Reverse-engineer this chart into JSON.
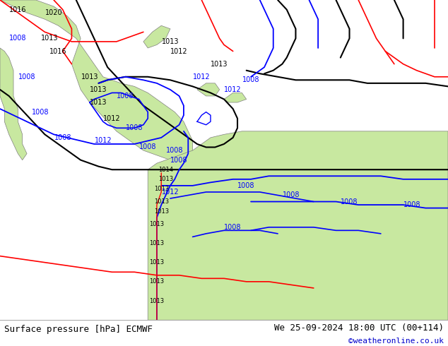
{
  "title_left": "Surface pressure [hPa] ECMWF",
  "title_right": "We 25-09-2024 18:00 UTC (00+114)",
  "copyright": "©weatheronline.co.uk",
  "bg_color": "#d8d8d8",
  "land_color": "#c8e8a0",
  "land_edge_color": "#808080",
  "fig_width": 6.34,
  "fig_height": 4.9,
  "dpi": 100,
  "title_fontsize": 9,
  "copyright_fontsize": 8,
  "copyright_color": "#0000cc"
}
